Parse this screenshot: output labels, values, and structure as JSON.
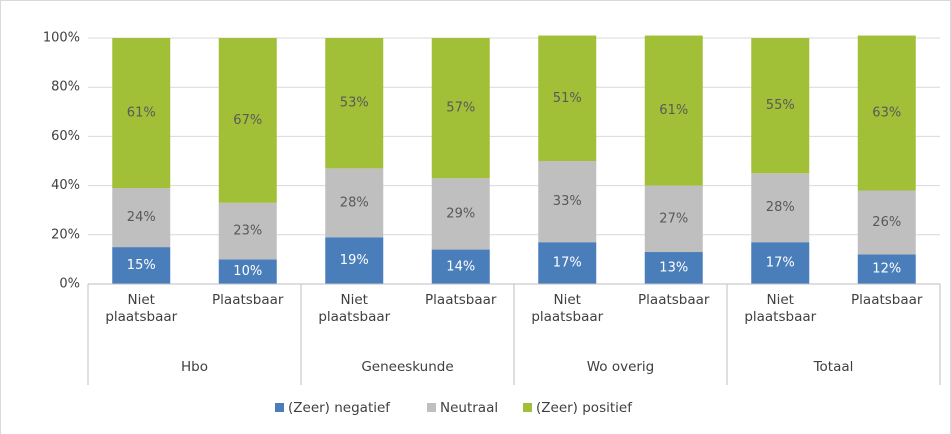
{
  "chart_data": {
    "type": "stacked_bar",
    "categories": [
      "Niet plaatsbaar",
      "Plaatsbaar",
      "Niet plaatsbaar",
      "Plaatsbaar",
      "Niet plaatsbaar",
      "Plaatsbaar",
      "Niet plaatsbaar",
      "Plaatsbaar"
    ],
    "groups": [
      "Hbo",
      "Geneeskunde",
      "Wo overig",
      "Totaal"
    ],
    "series": [
      {
        "name": "(Zeer) negatief",
        "color": "#4a7ebb",
        "label_color": "#ffffff",
        "values": [
          15,
          10,
          19,
          14,
          17,
          13,
          17,
          12
        ],
        "value_labels": [
          "15%",
          "10%",
          "19%",
          "14%",
          "17%",
          "13%",
          "17%",
          "12%"
        ]
      },
      {
        "name": "Neutraal",
        "color": "#bfbfbf",
        "label_color": "#595959",
        "values": [
          24,
          23,
          28,
          29,
          33,
          27,
          28,
          26
        ],
        "value_labels": [
          "24%",
          "23%",
          "28%",
          "29%",
          "33%",
          "27%",
          "28%",
          "26%"
        ]
      },
      {
        "name": "(Zeer) positief",
        "color": "#a2c037",
        "label_color": "#595959",
        "values": [
          61,
          67,
          53,
          57,
          51,
          61,
          55,
          63
        ],
        "value_labels": [
          "61%",
          "67%",
          "53%",
          "57%",
          "51%",
          "61%",
          "55%",
          "63%"
        ]
      }
    ],
    "ylim": [
      0,
      100
    ],
    "yticks": [
      {
        "value": 0,
        "label": "0%"
      },
      {
        "value": 20,
        "label": "20%"
      },
      {
        "value": 40,
        "label": "40%"
      },
      {
        "value": 60,
        "label": "60%"
      },
      {
        "value": 80,
        "label": "80%"
      },
      {
        "value": 100,
        "label": "100%"
      }
    ],
    "grid": true,
    "legend": "bottom"
  }
}
